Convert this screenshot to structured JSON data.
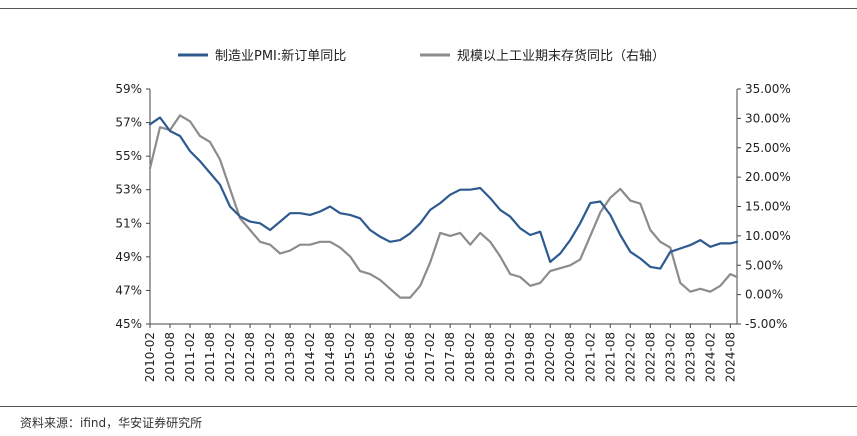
{
  "source_note": "资料来源：ifind，华安证券研究所",
  "chart_data": {
    "type": "line",
    "title": "",
    "legend_position": "top",
    "grid": false,
    "series": [
      {
        "name": "制造业PMI:新订单同比",
        "axis": "left",
        "color": "#2e5a8f",
        "x": [
          "2010-02",
          "2010-05",
          "2010-08",
          "2010-11",
          "2011-02",
          "2011-05",
          "2011-08",
          "2011-11",
          "2012-02",
          "2012-05",
          "2012-08",
          "2012-11",
          "2013-02",
          "2013-05",
          "2013-08",
          "2013-11",
          "2014-02",
          "2014-05",
          "2014-08",
          "2014-11",
          "2015-02",
          "2015-05",
          "2015-08",
          "2015-11",
          "2016-02",
          "2016-05",
          "2016-08",
          "2016-11",
          "2017-02",
          "2017-05",
          "2017-08",
          "2017-11",
          "2018-02",
          "2018-05",
          "2018-08",
          "2018-11",
          "2019-02",
          "2019-05",
          "2019-08",
          "2019-11",
          "2020-02",
          "2020-05",
          "2020-08",
          "2020-11",
          "2021-02",
          "2021-05",
          "2021-08",
          "2021-11",
          "2022-02",
          "2022-05",
          "2022-08",
          "2022-11",
          "2023-02",
          "2023-05",
          "2023-08",
          "2023-11",
          "2024-02",
          "2024-05",
          "2024-08",
          "2024-10"
        ],
        "values": [
          56.9,
          57.3,
          56.5,
          56.2,
          55.3,
          54.7,
          54.0,
          53.3,
          52.0,
          51.4,
          51.1,
          51.0,
          50.6,
          51.1,
          51.6,
          51.6,
          51.5,
          51.7,
          52.0,
          51.6,
          51.5,
          51.3,
          50.6,
          50.2,
          49.9,
          50.0,
          50.4,
          51.0,
          51.8,
          52.2,
          52.7,
          53.0,
          53.0,
          53.1,
          52.5,
          51.8,
          51.4,
          50.7,
          50.3,
          50.5,
          48.7,
          49.2,
          50.0,
          51.0,
          52.2,
          52.3,
          51.5,
          50.3,
          49.3,
          48.9,
          48.4,
          48.3,
          49.3,
          49.5,
          49.7,
          50.0,
          49.6,
          49.8,
          49.8,
          49.9
        ]
      },
      {
        "name": "规模以上工业期末存货同比（右轴）",
        "axis": "right",
        "color": "#8c8c8c",
        "x": [
          "2010-02",
          "2010-05",
          "2010-08",
          "2010-11",
          "2011-02",
          "2011-05",
          "2011-08",
          "2011-11",
          "2012-02",
          "2012-05",
          "2012-08",
          "2012-11",
          "2013-02",
          "2013-05",
          "2013-08",
          "2013-11",
          "2014-02",
          "2014-05",
          "2014-08",
          "2014-11",
          "2015-02",
          "2015-05",
          "2015-08",
          "2015-11",
          "2016-02",
          "2016-05",
          "2016-08",
          "2016-11",
          "2017-02",
          "2017-05",
          "2017-08",
          "2017-11",
          "2018-02",
          "2018-05",
          "2018-08",
          "2018-11",
          "2019-02",
          "2019-05",
          "2019-08",
          "2019-11",
          "2020-02",
          "2020-05",
          "2020-08",
          "2020-11",
          "2021-02",
          "2021-05",
          "2021-08",
          "2021-11",
          "2022-02",
          "2022-05",
          "2022-08",
          "2022-11",
          "2023-02",
          "2023-05",
          "2023-08",
          "2023-11",
          "2024-02",
          "2024-05",
          "2024-08",
          "2024-10"
        ],
        "values": [
          21.5,
          28.5,
          28.0,
          30.5,
          29.5,
          27.0,
          26.0,
          23.0,
          18.0,
          13.0,
          11.0,
          9.0,
          8.5,
          7.0,
          7.5,
          8.5,
          8.5,
          9.0,
          9.0,
          8.0,
          6.5,
          4.0,
          3.5,
          2.5,
          1.0,
          -0.5,
          -0.5,
          1.5,
          5.5,
          10.5,
          10.0,
          10.5,
          8.5,
          10.5,
          9.0,
          6.5,
          3.5,
          3.0,
          1.5,
          2.0,
          4.0,
          4.5,
          5.0,
          6.0,
          10.0,
          14.0,
          16.5,
          18.0,
          16.0,
          15.5,
          11.0,
          9.0,
          8.0,
          2.0,
          0.5,
          1.0,
          0.5,
          1.5,
          3.5,
          3.0
        ]
      }
    ],
    "y_left": {
      "min": 45,
      "max": 59,
      "ticks": [
        "45%",
        "47%",
        "49%",
        "51%",
        "53%",
        "55%",
        "57%",
        "59%"
      ],
      "values": [
        45,
        47,
        49,
        51,
        53,
        55,
        57,
        59
      ]
    },
    "y_right": {
      "min": -5,
      "max": 35,
      "ticks": [
        "-5.00%",
        "0.00%",
        "5.00%",
        "10.00%",
        "15.00%",
        "20.00%",
        "25.00%",
        "30.00%",
        "35.00%"
      ],
      "values": [
        -5,
        0,
        5,
        10,
        15,
        20,
        25,
        30,
        35
      ]
    },
    "x_ticks": [
      "2010-02",
      "2010-08",
      "2011-02",
      "2011-08",
      "2012-02",
      "2012-08",
      "2013-02",
      "2013-08",
      "2014-02",
      "2014-08",
      "2015-02",
      "2015-08",
      "2016-02",
      "2016-08",
      "2017-02",
      "2017-08",
      "2018-02",
      "2018-08",
      "2019-02",
      "2019-08",
      "2020-02",
      "2020-08",
      "2021-02",
      "2021-08",
      "2022-02",
      "2022-08",
      "2023-02",
      "2023-08",
      "2024-02",
      "2024-08"
    ],
    "x_range": [
      "2010-02",
      "2024-10"
    ]
  }
}
